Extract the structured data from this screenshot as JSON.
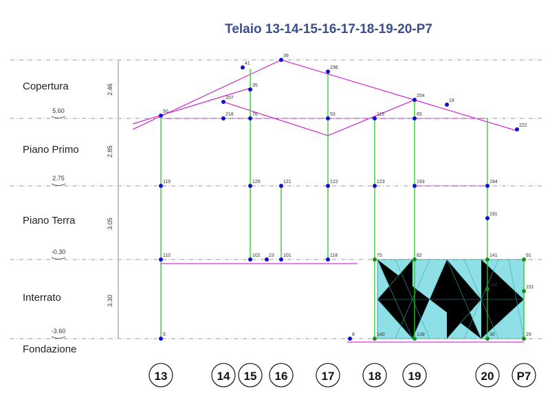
{
  "title": "Telaio 13-14-15-16-17-18-19-20-P7",
  "floors": [
    {
      "name": "Copertura",
      "height": "2.46"
    },
    {
      "name": "Piano Primo",
      "height": "2.85"
    },
    {
      "name": "Piano Terra",
      "height": "3.05"
    },
    {
      "name": "Interrato",
      "height": "3.30"
    },
    {
      "name": "Fondazione"
    }
  ],
  "levels": [
    "5.60",
    "2.75",
    "-0.30",
    "-3.60"
  ],
  "axes": [
    "13",
    "14",
    "15",
    "16",
    "17",
    "18",
    "19",
    "20",
    "P7"
  ],
  "nodes": [
    "50",
    "119",
    "110",
    "5",
    "207",
    "218",
    "35",
    "76",
    "120",
    "102",
    "41",
    "39",
    "121",
    "101",
    "23",
    "236",
    "53",
    "122",
    "118",
    "115",
    "123",
    "75",
    "140",
    "8",
    "254",
    "65",
    "193",
    "82",
    "139",
    "19",
    "194",
    "191",
    "141",
    "30",
    "222",
    "91",
    "151",
    "29",
    "180"
  ]
}
